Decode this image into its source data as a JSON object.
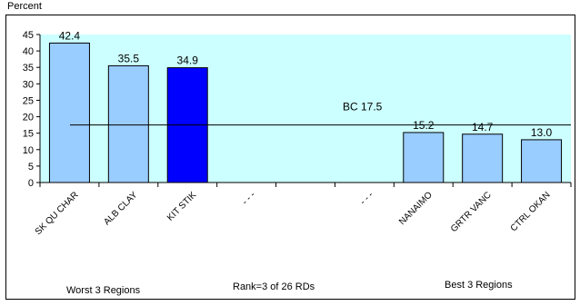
{
  "chart_data": {
    "type": "bar",
    "ylabel": "Percent",
    "categories": [
      "SK QU CHAR",
      "ALB CLAY",
      "KIT STIK",
      "- - -",
      "",
      "- - -",
      "NANAIMO",
      "GRTR VANC",
      "CTRL OKAN"
    ],
    "values": [
      42.4,
      35.5,
      34.9,
      null,
      null,
      null,
      15.2,
      14.7,
      13.0
    ],
    "value_labels": [
      "42.4",
      "35.5",
      "34.9",
      "",
      "",
      "",
      "15.2",
      "14.7",
      "13.0"
    ],
    "highlight_index": 2,
    "ylim": [
      0,
      45
    ],
    "yticks": [
      0,
      5,
      10,
      15,
      20,
      25,
      30,
      35,
      40,
      45
    ],
    "reference_line": {
      "label": "BC 17.5",
      "value": 17.5
    },
    "grid": false,
    "colors": {
      "plot_background": "#ccffff",
      "bar": "#99ccff",
      "bar_highlight": "#0000ff",
      "outline": "#000000"
    }
  },
  "footer": {
    "left": "Worst 3 Regions",
    "center": "Rank=3 of 26 RDs",
    "right": "Best 3 Regions"
  }
}
